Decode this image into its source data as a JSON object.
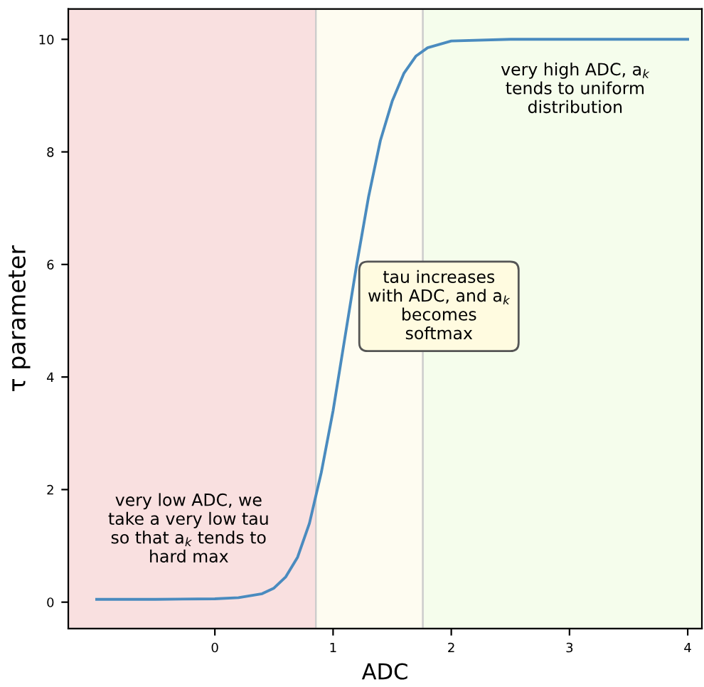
{
  "chart_data": {
    "type": "line",
    "xlabel": "ADC",
    "ylabel": "τ parameter",
    "xlim": [
      -1.24,
      4.12
    ],
    "ylim": [
      -0.47,
      10.54
    ],
    "xticks": [
      0,
      1,
      2,
      3,
      4
    ],
    "yticks": [
      0,
      2,
      4,
      6,
      8,
      10
    ],
    "grid": false,
    "legend": false,
    "marker": "none",
    "line_style": "solid",
    "series": [
      {
        "color": "#4a8bbf",
        "x": [
          -1,
          -0.5,
          0,
          0.2,
          0.4,
          0.5,
          0.6,
          0.7,
          0.8,
          0.9,
          1.0,
          1.1,
          1.2,
          1.3,
          1.4,
          1.5,
          1.6,
          1.7,
          1.8,
          2.0,
          2.5,
          3,
          4
        ],
        "values": [
          0.05,
          0.05,
          0.06,
          0.08,
          0.15,
          0.25,
          0.45,
          0.8,
          1.4,
          2.3,
          3.4,
          4.7,
          6.0,
          7.2,
          8.2,
          8.9,
          9.4,
          9.7,
          9.85,
          9.97,
          10.0,
          10.0,
          10.0
        ]
      }
    ],
    "bands": [
      {
        "axis": "x",
        "from": -1.24,
        "to": 0.855,
        "color": "#f9e0e0"
      },
      {
        "axis": "x",
        "from": 0.855,
        "to": 1.76,
        "color": "#fefcf1"
      },
      {
        "axis": "x",
        "from": 1.76,
        "to": 4.12,
        "color": "#f5fdec"
      }
    ],
    "annotations": [
      "very low ADC, we\ntake a very low tau\nso that a$_{k}$ tends to\nhard max",
      "tau increases\nwith ADC, and a$_{k}$\nbecomes\nsoftmax",
      "very high ADC, a$_{k}$\ntends to uniform\ndistribution"
    ]
  }
}
